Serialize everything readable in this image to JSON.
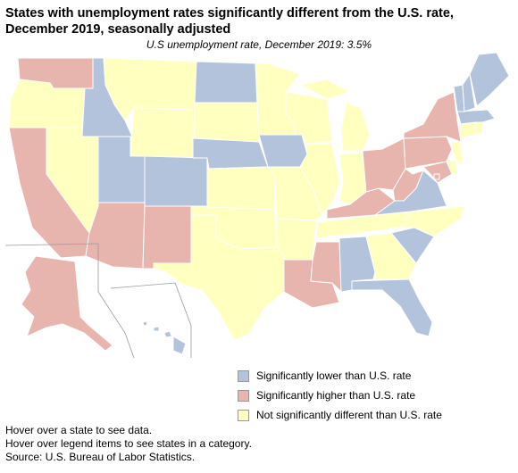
{
  "title": "States with unemployment rates significantly different from the U.S. rate, December 2019, seasonally adjusted",
  "subtitle": "U.S unemployment rate, December 2019: 3.5%",
  "colors": {
    "lower": "#b3c3db",
    "higher": "#e8b4ae",
    "not": "#ffffc0"
  },
  "legend": [
    {
      "key": "lower",
      "label": "Significantly lower than U.S. rate"
    },
    {
      "key": "higher",
      "label": "Significantly higher than U.S. rate"
    },
    {
      "key": "not",
      "label": "Not significantly different than U.S. rate"
    }
  ],
  "notes": [
    "Hover over a state to see data.",
    "Hover over legend items to see states in a category.",
    "Source: U.S. Bureau of Labor Statistics."
  ],
  "states": {
    "WA": "higher",
    "OR": "not",
    "CA": "higher",
    "ID": "lower",
    "NV": "not",
    "MT": "not",
    "WY": "not",
    "UT": "lower",
    "AZ": "higher",
    "CO": "lower",
    "NM": "higher",
    "ND": "lower",
    "SD": "not",
    "NE": "lower",
    "KS": "not",
    "OK": "not",
    "TX": "not",
    "MN": "not",
    "IA": "lower",
    "MO": "not",
    "AR": "not",
    "LA": "higher",
    "WI": "not",
    "IL": "not",
    "MS": "higher",
    "MI": "not",
    "IN": "not",
    "KY": "higher",
    "TN": "not",
    "AL": "lower",
    "OH": "higher",
    "WV": "higher",
    "GA": "not",
    "FL": "lower",
    "SC": "lower",
    "NC": "not",
    "VA": "lower",
    "PA": "higher",
    "NY": "higher",
    "ME": "lower",
    "VT": "lower",
    "NH": "lower",
    "MA": "lower",
    "CT": "not",
    "RI": "not",
    "NJ": "not",
    "DE": "not",
    "MD": "higher",
    "DC": "higher",
    "AK": "higher",
    "HI": "lower"
  }
}
